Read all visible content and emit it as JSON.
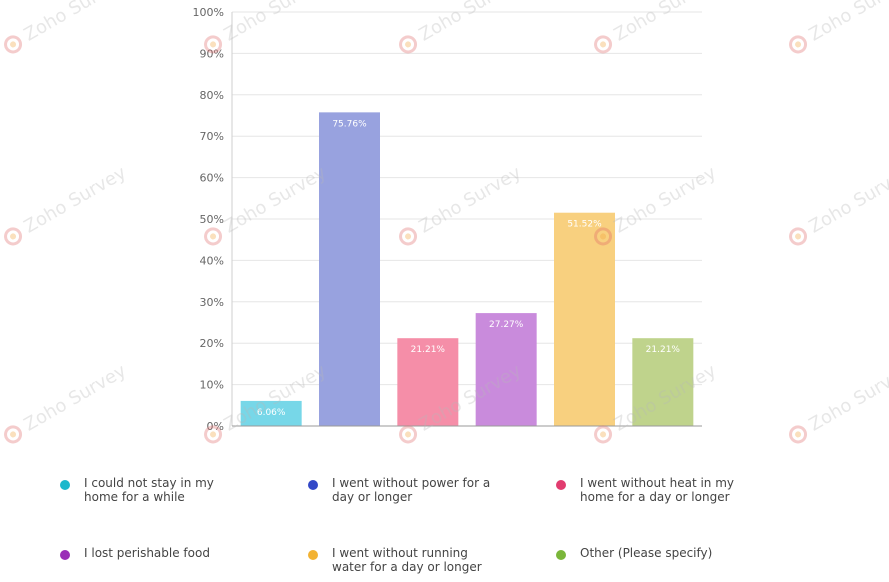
{
  "chart_data": {
    "type": "bar",
    "categories": [
      "I could not stay in my home for a while",
      "I went without power for a day or longer",
      "I went without heat in my home for a day or longer",
      "I lost perishable food",
      "I went without running water for a day or longer",
      "Other (Please specify)"
    ],
    "values": [
      6.06,
      75.76,
      21.21,
      27.27,
      51.52,
      21.21
    ],
    "value_labels": [
      "6.06%",
      "75.76%",
      "21.21%",
      "27.27%",
      "51.52%",
      "21.21%"
    ],
    "colors": [
      "#77d7e8",
      "#98a2df",
      "#f58ea8",
      "#c98bdc",
      "#f8d07f",
      "#bfd38c"
    ],
    "ylim": [
      0,
      100
    ],
    "yticks": [
      0,
      10,
      20,
      30,
      40,
      50,
      60,
      70,
      80,
      90,
      100
    ],
    "ytick_labels": [
      "0%",
      "10%",
      "20%",
      "30%",
      "40%",
      "50%",
      "60%",
      "70%",
      "80%",
      "90%",
      "100%"
    ],
    "grid": true,
    "legend_position": "bottom"
  },
  "legend": {
    "items": [
      {
        "label": "I could not stay in my home for a while",
        "color": "#1bb8cc"
      },
      {
        "label": "I went without power for a day or longer",
        "color": "#3348c7"
      },
      {
        "label": "I went without heat in my home for a day or longer",
        "color": "#e13c6f"
      },
      {
        "label": "I lost perishable food",
        "color": "#9a2eb7"
      },
      {
        "label": "I went without running water for a day or longer",
        "color": "#f2b233"
      },
      {
        "label": "Other (Please specify)",
        "color": "#7ab63a"
      }
    ]
  },
  "watermark": {
    "text": "Zoho Survey"
  }
}
